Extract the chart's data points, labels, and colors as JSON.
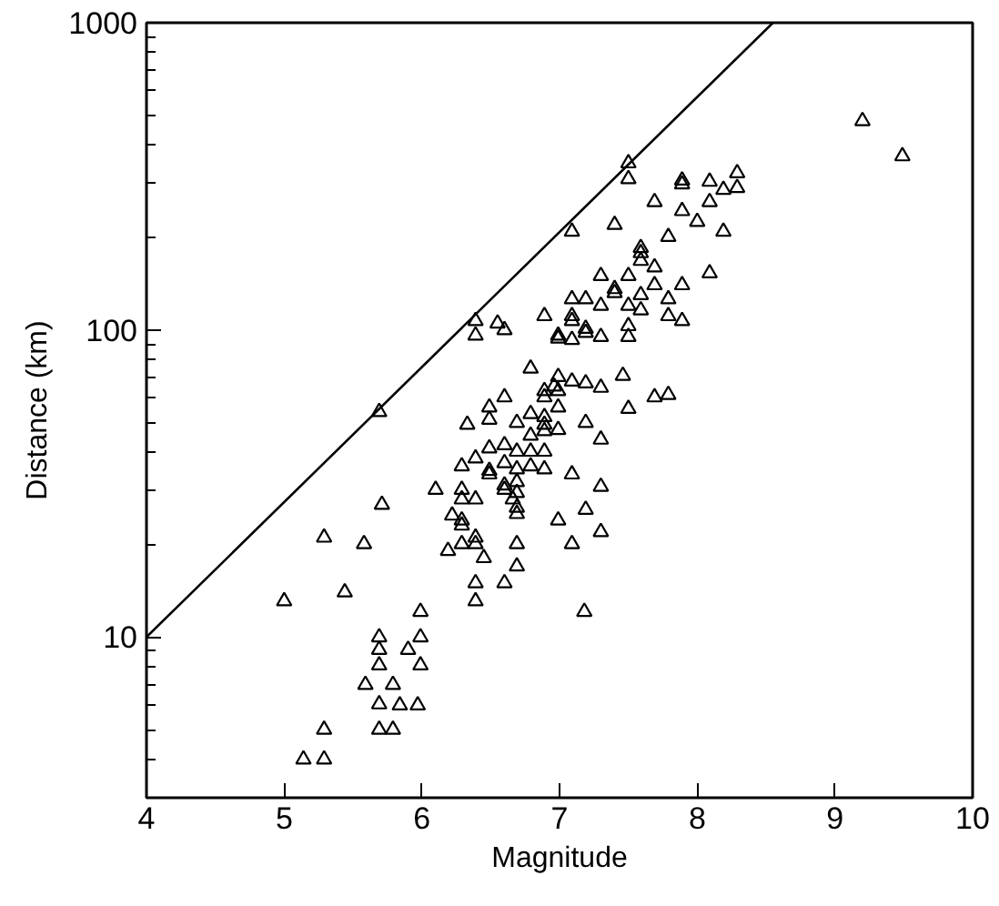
{
  "chart_data": {
    "type": "scatter",
    "xlabel": "Magnitude",
    "ylabel": "Distance (km)",
    "log": "y",
    "grid": false,
    "xlim": [
      4,
      10
    ],
    "ylim": [
      3,
      1000
    ],
    "xticks": [
      4,
      5,
      6,
      7,
      8,
      9,
      10
    ],
    "yticks": [
      {
        "value": 4,
        "label": null
      },
      {
        "value": 5,
        "label": null
      },
      {
        "value": 6,
        "label": null
      },
      {
        "value": 7,
        "label": null
      },
      {
        "value": 8,
        "label": null
      },
      {
        "value": 9,
        "label": null
      },
      10,
      {
        "value": 20,
        "label": null
      },
      {
        "value": 30,
        "label": null
      },
      {
        "value": 40,
        "label": null
      },
      {
        "value": 50,
        "label": null
      },
      {
        "value": 60,
        "label": null
      },
      {
        "value": 70,
        "label": null
      },
      {
        "value": 80,
        "label": null
      },
      {
        "value": 90,
        "label": null
      },
      100,
      {
        "value": 200,
        "label": null
      },
      {
        "value": 300,
        "label": null
      },
      {
        "value": 400,
        "label": null
      },
      {
        "value": 500,
        "label": null
      },
      {
        "value": 600,
        "label": null
      },
      {
        "value": 700,
        "label": null
      },
      {
        "value": 800,
        "label": null
      },
      {
        "value": 900,
        "label": null
      },
      1000
    ],
    "series": [
      {
        "marker": "triangle",
        "color": "#000000",
        "x": [
          5.0,
          5.14,
          5.29,
          5.29,
          5.29,
          5.44,
          5.58,
          5.59,
          5.69,
          5.71,
          5.69,
          5.69,
          5.69,
          5.69,
          5.69,
          5.79,
          5.79,
          5.84,
          5.9,
          5.97,
          5.99,
          5.99,
          5.99,
          6.1,
          6.19,
          6.22,
          6.29,
          6.29,
          6.29,
          6.29,
          6.29,
          6.29,
          6.33,
          6.39,
          6.39,
          6.39,
          6.39,
          6.39,
          6.39,
          6.45,
          6.39,
          6.39,
          6.55,
          6.6,
          6.49,
          6.49,
          6.49,
          6.49,
          6.49,
          6.6,
          6.6,
          6.6,
          6.6,
          6.6,
          6.6,
          6.69,
          6.69,
          6.69,
          6.69,
          6.69,
          6.69,
          6.69,
          6.69,
          6.69,
          6.66,
          6.79,
          6.79,
          6.79,
          6.79,
          6.79,
          6.89,
          6.89,
          6.89,
          6.89,
          6.89,
          6.89,
          6.89,
          6.89,
          6.99,
          6.99,
          6.99,
          6.99,
          6.99,
          6.99,
          6.99,
          6.96,
          7.09,
          7.09,
          7.09,
          7.09,
          7.09,
          7.09,
          7.09,
          7.09,
          7.19,
          7.19,
          7.19,
          7.19,
          7.19,
          7.19,
          7.18,
          7.3,
          7.3,
          7.3,
          7.3,
          7.3,
          7.3,
          7.3,
          7.4,
          7.4,
          7.4,
          7.46,
          7.5,
          7.5,
          7.5,
          7.5,
          7.5,
          7.5,
          7.5,
          7.59,
          7.59,
          7.59,
          7.59,
          7.59,
          7.69,
          7.69,
          7.69,
          7.69,
          7.79,
          7.79,
          7.79,
          7.79,
          7.89,
          7.89,
          7.89,
          7.89,
          7.89,
          8.0,
          8.09,
          8.09,
          8.09,
          8.19,
          8.19,
          8.29,
          8.29,
          9.2,
          9.49
        ],
        "values": [
          13.1,
          4.0,
          4.0,
          5.0,
          21.1,
          14.0,
          20.1,
          7.0,
          54.1,
          27.0,
          10,
          9.1,
          8.1,
          6.05,
          5.0,
          7.0,
          5.0,
          6.0,
          9.1,
          6.0,
          12.1,
          10,
          8.1,
          30.2,
          19.1,
          24.9,
          24,
          23.1,
          28.1,
          30.2,
          36,
          20.1,
          49.2,
          38.2,
          28.1,
          21.1,
          20.1,
          15,
          13.1,
          18.1,
          107,
          96,
          105,
          100,
          41.2,
          51.1,
          56,
          34.8,
          33.9,
          60.4,
          42.2,
          36.9,
          31.2,
          30.2,
          15,
          49.9,
          40.2,
          35.2,
          32,
          29.5,
          26.4,
          25.2,
          20.1,
          17,
          28.1,
          74.9,
          53.3,
          45.3,
          40.2,
          36,
          111,
          60.4,
          63.3,
          52.1,
          49.2,
          46.9,
          40.2,
          35.2,
          70.4,
          63.3,
          56,
          47.3,
          24,
          93.8,
          96,
          65.5,
          126,
          111,
          107,
          92.9,
          209,
          68,
          33.9,
          20.1,
          126,
          101,
          98,
          67.1,
          49.9,
          26,
          12.1,
          150,
          120,
          95,
          64.9,
          44,
          30.9,
          22,
          220,
          136,
          132,
          71,
          349,
          310,
          150,
          120,
          103,
          95,
          55.4,
          185,
          178,
          168,
          130,
          116,
          261,
          160,
          140,
          60.4,
          201,
          126,
          111,
          61.5,
          307,
          298,
          244,
          140,
          107,
          225,
          304,
          261,
          153,
          286,
          209,
          324,
          290,
          479,
          368
        ]
      },
      {
        "type": "line",
        "color": "#000000",
        "x": [
          4,
          8.55
        ],
        "values": [
          10,
          1000
        ]
      }
    ]
  }
}
